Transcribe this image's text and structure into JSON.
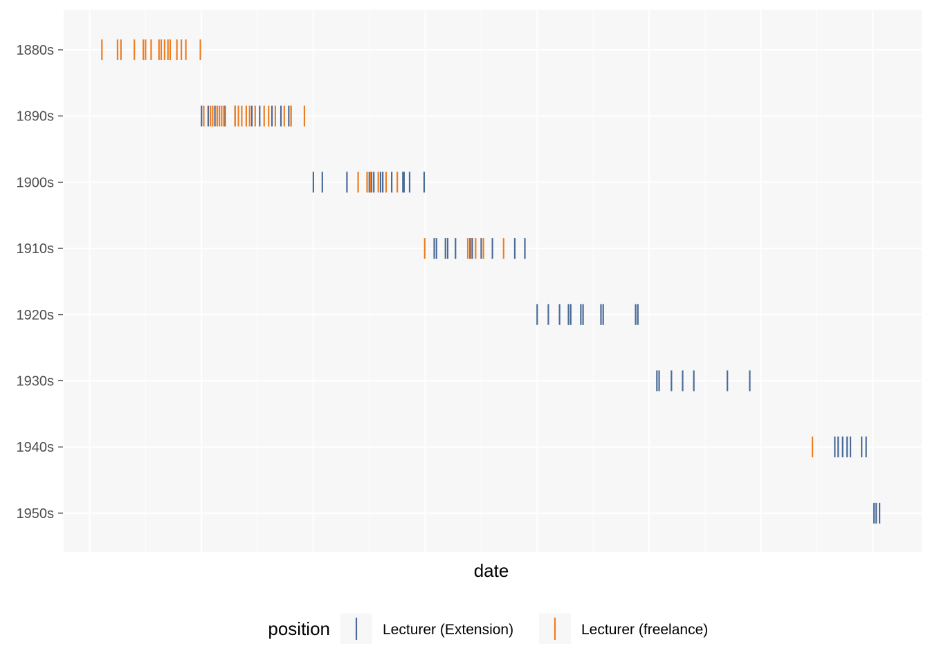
{
  "chart_data": {
    "type": "strip",
    "xlabel": "date",
    "ylabel": "",
    "x_axis": {
      "kind": "date",
      "range": [
        "1879-01-01",
        "1958-06-01"
      ],
      "tick_labels_shown": false,
      "gridlines_at_years": [
        1880,
        1890,
        1900,
        1910,
        1920,
        1930,
        1940,
        1950,
        1960
      ]
    },
    "categories": [
      "1880s",
      "1890s",
      "1900s",
      "1910s",
      "1920s",
      "1930s",
      "1940s",
      "1950s"
    ],
    "grid": true,
    "legend": {
      "title": "position",
      "placement": "bottom"
    },
    "series": [
      {
        "name": "Lecturer (Extension)",
        "color": "#4a6b9a",
        "points": [
          {
            "category": "1890s",
            "dates": [
              1890.0,
              1890.6,
              1891.2,
              1892.1,
              1893.0,
              1894.5,
              1895.2,
              1896.3,
              1897.1,
              1897.8,
              1898.0
            ]
          },
          {
            "category": "1900s",
            "dates": [
              1900.0,
              1900.8,
              1903.0,
              1905.0,
              1905.2,
              1905.4,
              1906.0,
              1906.2,
              1907.0,
              1908.0,
              1908.1,
              1908.6,
              1909.9
            ]
          },
          {
            "category": "1910s",
            "dates": [
              1910.8,
              1911.0,
              1911.8,
              1912.0,
              1912.7,
              1914.0,
              1914.2,
              1915.0,
              1916.0,
              1918.0,
              1918.9
            ]
          },
          {
            "category": "1920s",
            "dates": [
              1920.0,
              1921.0,
              1922.0,
              1922.8,
              1923.0,
              1923.9,
              1924.1,
              1925.7,
              1925.9,
              1928.8,
              1929.0
            ]
          },
          {
            "category": "1930s",
            "dates": [
              1930.7,
              1930.9,
              1932.0,
              1933.0,
              1934.0,
              1937.0,
              1939.0
            ]
          },
          {
            "category": "1940s",
            "dates": [
              1946.6,
              1946.9,
              1947.3,
              1947.7,
              1948.0,
              1949.0,
              1949.4
            ]
          },
          {
            "category": "1950s",
            "dates": [
              1950.1,
              1950.3,
              1950.6
            ]
          }
        ]
      },
      {
        "name": "Lecturer (freelance)",
        "color": "#ee7d21",
        "points": [
          {
            "category": "1880s",
            "dates": [
              1881.1,
              1882.5,
              1882.8,
              1884.0,
              1884.8,
              1885.0,
              1885.5,
              1886.2,
              1886.4,
              1886.7,
              1887.0,
              1887.2,
              1887.8,
              1888.2,
              1888.6,
              1889.9
            ]
          },
          {
            "category": "1890s",
            "dates": [
              1890.2,
              1890.8,
              1891.0,
              1891.4,
              1891.6,
              1891.8,
              1892.0,
              1893.0,
              1893.3,
              1893.6,
              1894.0,
              1894.3,
              1894.8,
              1895.6,
              1896.0,
              1896.6,
              1897.4,
              1898.0,
              1899.2
            ]
          },
          {
            "category": "1900s",
            "dates": [
              1904.0,
              1904.8,
              1905.1,
              1905.8,
              1906.5,
              1907.5
            ]
          },
          {
            "category": "1910s",
            "dates": [
              1909.95,
              1913.8,
              1914.1,
              1914.5,
              1915.2,
              1917.0
            ]
          },
          {
            "category": "1940s",
            "dates": [
              1944.6
            ]
          }
        ]
      }
    ]
  }
}
